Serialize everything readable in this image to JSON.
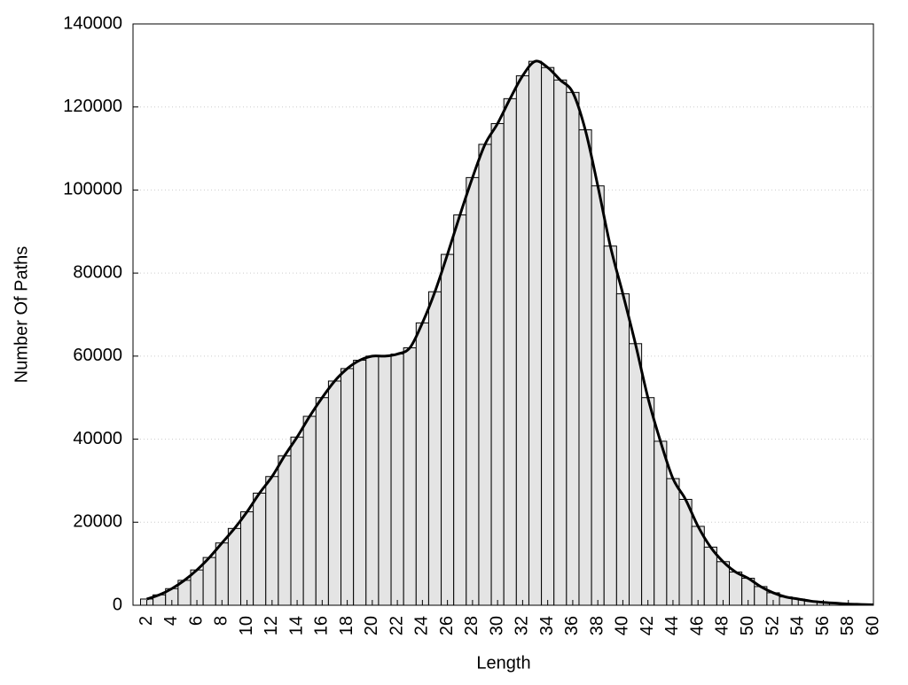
{
  "chart_data": {
    "type": "histogram",
    "x_label": "Length",
    "y_label": "Number Of Paths",
    "x": [
      2,
      3,
      4,
      5,
      6,
      7,
      8,
      9,
      10,
      11,
      12,
      13,
      14,
      15,
      16,
      17,
      18,
      19,
      20,
      21,
      22,
      23,
      24,
      25,
      26,
      27,
      28,
      29,
      30,
      31,
      32,
      33,
      34,
      35,
      36,
      37,
      38,
      39,
      40,
      41,
      42,
      43,
      44,
      45,
      46,
      47,
      48,
      49,
      50,
      51,
      52,
      53,
      54,
      55,
      56,
      57,
      58,
      59,
      60
    ],
    "values": [
      1500,
      2500,
      4000,
      6000,
      8500,
      11500,
      15000,
      18500,
      22500,
      27000,
      31000,
      36000,
      40500,
      45500,
      50000,
      54000,
      57000,
      59000,
      60000,
      60000,
      60500,
      62000,
      68000,
      75500,
      84500,
      94000,
      103000,
      111000,
      116000,
      122000,
      127500,
      131000,
      129500,
      126500,
      123500,
      114500,
      101000,
      86500,
      75000,
      63000,
      50000,
      39500,
      30500,
      25500,
      19000,
      14000,
      10500,
      8000,
      6500,
      4500,
      3000,
      2000,
      1500,
      1000,
      700,
      500,
      300,
      200,
      100
    ],
    "color": "#e4e4e4",
    "line_color": "#000000",
    "smooth_line": true,
    "xlim": [
      0.9,
      60
    ],
    "xticks": [
      2,
      4,
      6,
      8,
      10,
      12,
      14,
      16,
      18,
      20,
      22,
      24,
      26,
      28,
      30,
      32,
      34,
      36,
      38,
      40,
      42,
      44,
      46,
      48,
      50,
      52,
      54,
      56,
      58,
      60
    ],
    "ylim": [
      0,
      140000
    ],
    "yticks": [
      0,
      20000,
      40000,
      60000,
      80000,
      100000,
      120000,
      140000
    ],
    "grid": true
  }
}
